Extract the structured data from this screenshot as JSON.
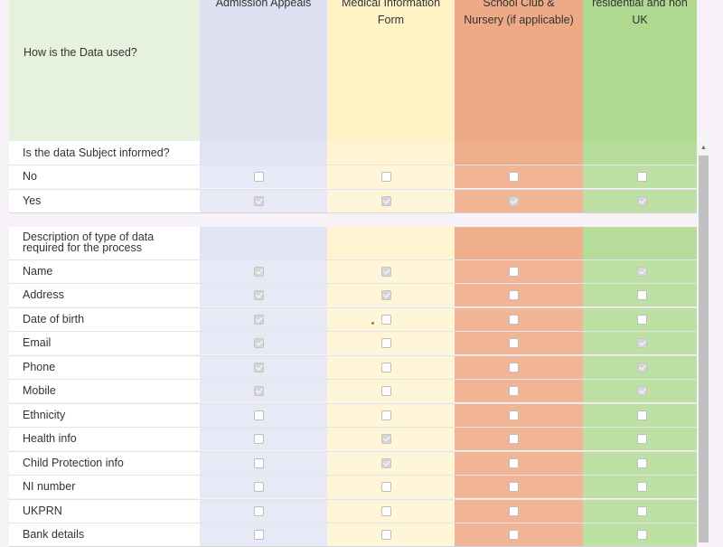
{
  "header": {
    "title": "How is the Data used?",
    "columns": [
      "Admission Appeals",
      "Medical Information\nForm",
      "School Club &\nNursery (if applicable)",
      "residential and non\nUK"
    ]
  },
  "sections": [
    {
      "question": "Is the data Subject informed?",
      "rows": [
        {
          "label": "No",
          "checks": [
            false,
            false,
            false,
            false
          ]
        },
        {
          "label": "Yes",
          "checks": [
            true,
            true,
            true,
            true
          ]
        }
      ]
    },
    {
      "question": "Description of type of data required for the process",
      "rows": [
        {
          "label": "Name",
          "checks": [
            true,
            true,
            false,
            true
          ]
        },
        {
          "label": "Address",
          "checks": [
            true,
            true,
            false,
            false
          ]
        },
        {
          "label": "Date of birth",
          "checks": [
            true,
            false,
            false,
            false
          ]
        },
        {
          "label": "Email",
          "checks": [
            true,
            false,
            false,
            true
          ]
        },
        {
          "label": "Phone",
          "checks": [
            true,
            false,
            false,
            true
          ]
        },
        {
          "label": "Mobile",
          "checks": [
            true,
            false,
            false,
            true
          ]
        },
        {
          "label": "Ethnicity",
          "checks": [
            false,
            false,
            false,
            false
          ]
        },
        {
          "label": "Health info",
          "checks": [
            false,
            true,
            false,
            false
          ]
        },
        {
          "label": "Child Protection info",
          "checks": [
            false,
            true,
            false,
            false
          ]
        },
        {
          "label": "NI number",
          "checks": [
            false,
            false,
            false,
            false
          ]
        },
        {
          "label": "UKPRN",
          "checks": [
            false,
            false,
            false,
            false
          ]
        },
        {
          "label": "Bank details",
          "checks": [
            false,
            false,
            false,
            false
          ]
        }
      ]
    }
  ],
  "icons": {
    "scroll_up": "scroll-up-arrow-icon"
  }
}
